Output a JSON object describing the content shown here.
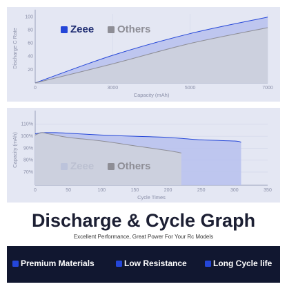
{
  "chart_data": [
    {
      "type": "area",
      "y_label": "Discharge C Rate",
      "x_label": "Capacity (mAh)",
      "categories": [
        "0",
        "3000",
        "5000",
        "7000"
      ],
      "series": [
        {
          "name": "Zeee",
          "color": "#2446d8",
          "values": [
            0,
            42,
            75,
            100
          ]
        },
        {
          "name": "Others",
          "color": "#8e8e96",
          "values": [
            0,
            29,
            60,
            84
          ]
        }
      ],
      "ylim": [
        0,
        105
      ],
      "yticks": [
        20,
        40,
        60,
        80,
        100
      ],
      "grid": "x",
      "legend": "upper left"
    },
    {
      "type": "area",
      "y_label": "Capacity (mAh)",
      "x_label": "Cycle Times",
      "series": [
        {
          "name": "Zeee",
          "color": "#2446d8",
          "x": [
            0,
            10,
            20,
            30,
            50,
            100,
            150,
            200,
            250,
            300,
            310
          ],
          "values": [
            102,
            103,
            103,
            103,
            102.5,
            101,
            100,
            99,
            97,
            96,
            95
          ]
        },
        {
          "name": "Others",
          "color": "#8e8e96",
          "x": [
            0,
            10,
            20,
            30,
            50,
            100,
            150,
            200,
            220
          ],
          "values": [
            101,
            103,
            102,
            101,
            99,
            96,
            92,
            88,
            86
          ]
        }
      ],
      "xlim": [
        0,
        350
      ],
      "xticks": [
        0,
        50,
        100,
        150,
        200,
        250,
        300,
        350
      ],
      "ylim": [
        59,
        118
      ],
      "yticks": [
        {
          "value": 70,
          "label": "70%"
        },
        {
          "value": 80,
          "label": "80%"
        },
        {
          "value": 90,
          "label": "90%"
        },
        {
          "value": 100,
          "label": "100%"
        },
        {
          "value": 110,
          "label": "110%"
        }
      ],
      "grid": "y",
      "legend": "lower left"
    }
  ],
  "headline": "Discharge & Cycle Graph",
  "subtitle": "Excellent Performance, Great Power For Your Rc Models",
  "features": [
    "Premium Materials",
    "Low Resistance",
    "Long Cycle life"
  ]
}
